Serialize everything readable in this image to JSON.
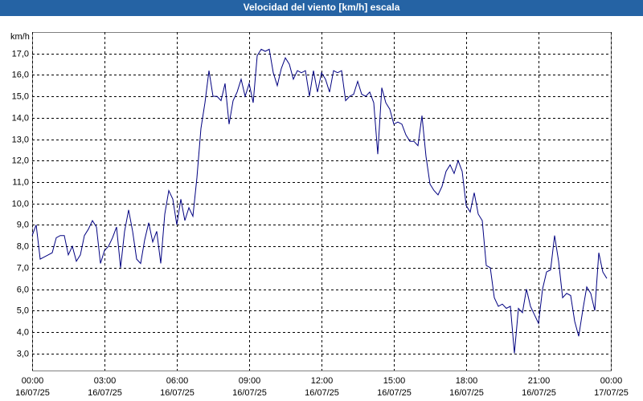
{
  "chart_data": {
    "type": "line",
    "title": "Velocidad del viento [km/h] escala",
    "y_label": "km/h",
    "x": [
      0,
      10,
      20,
      30,
      40,
      50,
      60,
      70,
      80,
      90,
      100,
      110,
      120,
      130,
      140,
      150,
      160,
      170,
      180,
      190,
      200,
      210,
      220,
      230,
      240,
      250,
      260,
      270,
      280,
      290,
      300,
      310,
      320,
      330,
      340,
      350,
      360,
      370,
      380,
      390,
      400,
      410,
      420,
      430,
      440,
      450,
      460,
      470,
      480,
      490,
      500,
      510,
      520,
      530,
      540,
      550,
      560,
      570,
      580,
      590,
      600,
      610,
      620,
      630,
      640,
      650,
      660,
      670,
      680,
      690,
      700,
      710,
      720,
      730,
      740,
      750,
      760,
      770,
      780,
      790,
      800,
      810,
      820,
      830,
      840,
      850,
      860,
      870,
      880,
      890,
      900,
      910,
      920,
      930,
      940,
      950,
      960,
      970,
      980,
      990,
      1000,
      1010,
      1020,
      1030,
      1040,
      1050,
      1060,
      1070,
      1080,
      1090,
      1100,
      1110,
      1120,
      1130,
      1140,
      1150,
      1160,
      1170,
      1180,
      1190,
      1200,
      1210,
      1220,
      1230,
      1240,
      1250,
      1260,
      1270,
      1280,
      1290,
      1300,
      1310,
      1320,
      1330,
      1340,
      1350,
      1360,
      1370,
      1380,
      1390,
      1400,
      1410,
      1420,
      1430
    ],
    "series": [
      {
        "color": "#000080",
        "values": [
          8.5,
          9.0,
          7.4,
          7.5,
          7.6,
          7.7,
          8.4,
          8.5,
          8.5,
          7.6,
          8.0,
          7.3,
          7.6,
          8.5,
          8.8,
          9.2,
          8.9,
          7.2,
          7.8,
          8.0,
          8.4,
          8.9,
          7.0,
          8.7,
          9.7,
          8.7,
          7.4,
          7.2,
          8.3,
          9.1,
          8.2,
          8.7,
          7.2,
          9.5,
          10.6,
          10.2,
          9.0,
          10.2,
          9.2,
          9.8,
          9.4,
          11.2,
          13.5,
          14.7,
          16.2,
          15.0,
          15.0,
          14.8,
          15.6,
          13.7,
          14.8,
          15.2,
          15.8,
          15.0,
          15.6,
          14.7,
          16.9,
          17.2,
          17.1,
          17.2,
          16.1,
          15.5,
          16.3,
          16.8,
          16.5,
          15.8,
          16.2,
          16.1,
          16.2,
          15.0,
          16.2,
          15.2,
          16.1,
          15.8,
          15.2,
          16.2,
          16.1,
          16.2,
          14.8,
          15.0,
          15.1,
          15.7,
          15.1,
          15.0,
          15.2,
          14.7,
          12.3,
          15.4,
          14.7,
          14.4,
          13.7,
          13.8,
          13.7,
          13.2,
          12.9,
          12.9,
          12.7,
          14.1,
          12.2,
          10.9,
          10.6,
          10.4,
          10.8,
          11.5,
          11.8,
          11.4,
          12.0,
          11.5,
          9.9,
          9.6,
          10.5,
          9.5,
          9.2,
          7.1,
          7.0,
          5.6,
          5.2,
          5.3,
          5.1,
          5.2,
          3.0,
          5.1,
          4.9,
          6.0,
          5.2,
          4.8,
          4.4,
          6.0,
          6.8,
          6.9,
          8.5,
          7.3,
          5.6,
          5.8,
          5.7,
          4.5,
          3.8,
          5.0,
          6.1,
          5.8,
          5.0,
          7.7,
          6.8,
          6.5
        ]
      }
    ],
    "xlim": [
      0,
      1440
    ],
    "xticks": [
      {
        "value": 0,
        "label": "00:00",
        "date": "16/07/25"
      },
      {
        "value": 180,
        "label": "03:00",
        "date": "16/07/25"
      },
      {
        "value": 360,
        "label": "06:00",
        "date": "16/07/25"
      },
      {
        "value": 540,
        "label": "09:00",
        "date": "16/07/25"
      },
      {
        "value": 720,
        "label": "12:00",
        "date": "16/07/25"
      },
      {
        "value": 900,
        "label": "15:00",
        "date": "16/07/25"
      },
      {
        "value": 1080,
        "label": "18:00",
        "date": "16/07/25"
      },
      {
        "value": 1260,
        "label": "21:00",
        "date": "16/07/25"
      },
      {
        "value": 1440,
        "label": "00:00",
        "date": "17/07/25"
      }
    ],
    "ylim": [
      2.2,
      18.0
    ],
    "yticks": [
      {
        "value": 3,
        "label": "3,0"
      },
      {
        "value": 4,
        "label": "4,0"
      },
      {
        "value": 5,
        "label": "5,0"
      },
      {
        "value": 6,
        "label": "6,0"
      },
      {
        "value": 7,
        "label": "7,0"
      },
      {
        "value": 8,
        "label": "8,0"
      },
      {
        "value": 9,
        "label": "9,0"
      },
      {
        "value": 10,
        "label": "10,0"
      },
      {
        "value": 11,
        "label": "11,0"
      },
      {
        "value": 12,
        "label": "12,0"
      },
      {
        "value": 13,
        "label": "13,0"
      },
      {
        "value": 14,
        "label": "14,0"
      },
      {
        "value": 15,
        "label": "15,0"
      },
      {
        "value": 16,
        "label": "16,0"
      },
      {
        "value": 17,
        "label": "17,0"
      }
    ],
    "grid": true
  }
}
